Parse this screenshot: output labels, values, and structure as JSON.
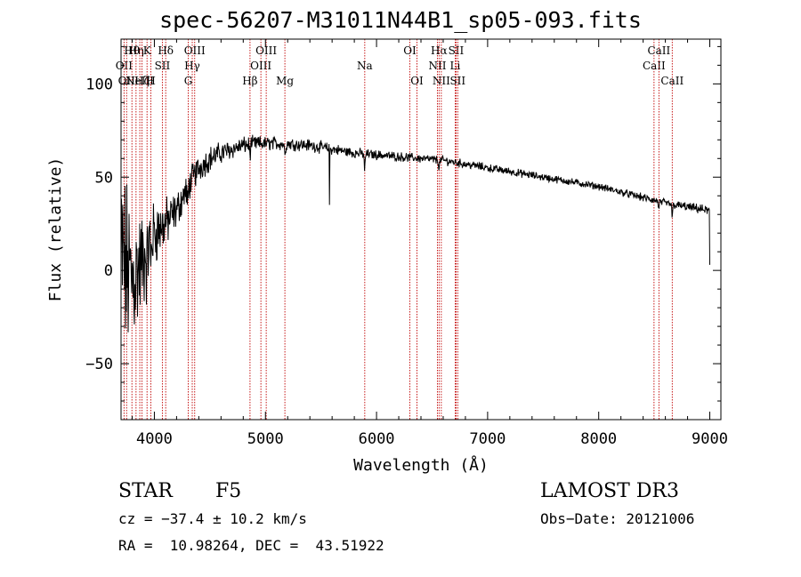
{
  "chart_data": {
    "type": "line",
    "title": "spec-56207-M31011N44B1_sp05-093.fits",
    "xlabel": "Wavelength (Å)",
    "ylabel": "Flux (relative)",
    "xlim": [
      3700,
      9100
    ],
    "ylim": [
      -80,
      124
    ],
    "x_ticks": [
      4000,
      5000,
      6000,
      7000,
      8000,
      9000
    ],
    "y_ticks": [
      -50,
      0,
      50,
      100
    ],
    "x_tick_labels": [
      "4000",
      "5000",
      "6000",
      "7000",
      "8000",
      "9000"
    ],
    "y_tick_labels": [
      "−50",
      "0",
      "50",
      "100"
    ],
    "continuum": [
      [
        3700,
        5
      ],
      [
        3800,
        -5
      ],
      [
        3850,
        0
      ],
      [
        3900,
        5
      ],
      [
        3950,
        15
      ],
      [
        4000,
        20
      ],
      [
        4100,
        25
      ],
      [
        4200,
        32
      ],
      [
        4300,
        45
      ],
      [
        4400,
        55
      ],
      [
        4500,
        60
      ],
      [
        4600,
        63
      ],
      [
        4700,
        65
      ],
      [
        4800,
        67
      ],
      [
        4900,
        68
      ],
      [
        5000,
        68
      ],
      [
        5200,
        68
      ],
      [
        5400,
        67
      ],
      [
        5600,
        65
      ],
      [
        5800,
        63
      ],
      [
        6000,
        62
      ],
      [
        6200,
        61
      ],
      [
        6400,
        60
      ],
      [
        6600,
        59
      ],
      [
        6800,
        57
      ],
      [
        7000,
        55
      ],
      [
        7200,
        53
      ],
      [
        7400,
        51
      ],
      [
        7600,
        49
      ],
      [
        7800,
        47
      ],
      [
        8000,
        45
      ],
      [
        8200,
        42
      ],
      [
        8400,
        39
      ],
      [
        8600,
        36
      ],
      [
        8800,
        34
      ],
      [
        9000,
        32
      ]
    ],
    "noise_profile": [
      [
        3700,
        45
      ],
      [
        3800,
        32
      ],
      [
        3900,
        22
      ],
      [
        4000,
        14
      ],
      [
        4200,
        8
      ],
      [
        4400,
        6
      ],
      [
        4700,
        4
      ],
      [
        5000,
        3
      ],
      [
        6000,
        2
      ],
      [
        8000,
        1.5
      ],
      [
        9000,
        2
      ]
    ],
    "absorption_features": [
      {
        "wave": 3968,
        "depth": 12,
        "width": 6
      },
      {
        "wave": 3933,
        "depth": 12,
        "width": 6
      },
      {
        "wave": 4300,
        "depth": 10,
        "width": 8
      },
      {
        "wave": 4861,
        "depth": 6,
        "width": 6
      },
      {
        "wave": 5175,
        "depth": 4,
        "width": 10
      },
      {
        "wave": 5577,
        "depth": 37,
        "width": 2
      },
      {
        "wave": 5893,
        "depth": 10,
        "width": 5
      },
      {
        "wave": 6563,
        "depth": 6,
        "width": 5
      },
      {
        "wave": 8542,
        "depth": 5,
        "width": 5
      },
      {
        "wave": 8662,
        "depth": 8,
        "width": 5
      }
    ],
    "end_drop": {
      "wave": 9000,
      "flux": 3
    },
    "line_markers": [
      {
        "wave": 3727,
        "label": "OII",
        "row": 2
      },
      {
        "wave": 3750,
        "label": "OII",
        "row": 3
      },
      {
        "wave": 3798,
        "label": "Hθ",
        "row": 1
      },
      {
        "wave": 3835,
        "label": "Hη",
        "row": 1
      },
      {
        "wave": 3869,
        "label": "NeIII",
        "row": 3
      },
      {
        "wave": 3889,
        "label": "Hζ",
        "row": 3
      },
      {
        "wave": 3934,
        "label": "K",
        "row": 1
      },
      {
        "wave": 3969,
        "label": "H",
        "row": 3
      },
      {
        "wave": 4072,
        "label": "SII",
        "row": 2
      },
      {
        "wave": 4102,
        "label": "Hδ",
        "row": 1
      },
      {
        "wave": 4305,
        "label": "G",
        "row": 3
      },
      {
        "wave": 4341,
        "label": "Hγ",
        "row": 2
      },
      {
        "wave": 4363,
        "label": "OIII",
        "row": 1
      },
      {
        "wave": 4861,
        "label": "Hβ",
        "row": 3
      },
      {
        "wave": 4959,
        "label": "OIII",
        "row": 2
      },
      {
        "wave": 5007,
        "label": "OIII",
        "row": 1
      },
      {
        "wave": 5175,
        "label": "Mg",
        "row": 3
      },
      {
        "wave": 5894,
        "label": "Na",
        "row": 2
      },
      {
        "wave": 6300,
        "label": "OI",
        "row": 1
      },
      {
        "wave": 6364,
        "label": "OI",
        "row": 3
      },
      {
        "wave": 6548,
        "label": "NII",
        "row": 2
      },
      {
        "wave": 6563,
        "label": "Hα",
        "row": 1
      },
      {
        "wave": 6583,
        "label": "NII",
        "row": 3
      },
      {
        "wave": 6708,
        "label": "Li",
        "row": 2
      },
      {
        "wave": 6716,
        "label": "SII",
        "row": 1
      },
      {
        "wave": 6731,
        "label": "SII",
        "row": 3
      },
      {
        "wave": 8498,
        "label": "CaII",
        "row": 2
      },
      {
        "wave": 8542,
        "label": "CaII",
        "row": 1
      },
      {
        "wave": 8662,
        "label": "CaII",
        "row": 3
      }
    ]
  },
  "info": {
    "class": "STAR",
    "subclass": "F5",
    "survey": "LAMOST DR3",
    "cz": "cz = −37.4 ± 10.2 km/s",
    "obs_date": "Obs−Date: 20121006",
    "coords": "RA =  10.98264, DEC =  43.51922"
  },
  "colors": {
    "spectrum": "#000000",
    "marker": "#c00000",
    "background": "#ffffff"
  }
}
